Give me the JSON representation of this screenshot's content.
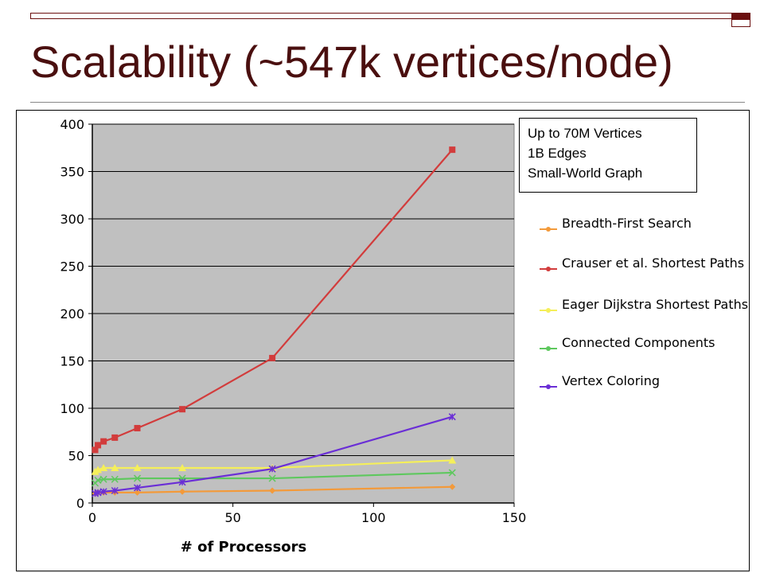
{
  "title": "Scalability (~547k vertices/node)",
  "info_box": [
    "Up to 70M Vertices",
    "1B Edges",
    "Small-World Graph"
  ],
  "chart_data": {
    "type": "line",
    "title": "",
    "xlabel": "# of Processors",
    "ylabel": "",
    "xlim": [
      0,
      150
    ],
    "ylim": [
      0,
      400
    ],
    "xticks": [
      0,
      50,
      100,
      150
    ],
    "yticks": [
      0,
      50,
      100,
      150,
      200,
      250,
      300,
      350,
      400
    ],
    "grid": "horizontal",
    "legend_position": "right",
    "plot_background": "#c0c0c0",
    "series": [
      {
        "name": "Breadth-First Search",
        "color": "#f39a3a",
        "marker": "diamond",
        "x": [
          1,
          2,
          4,
          8,
          16,
          32,
          64,
          128
        ],
        "y": [
          10,
          11,
          11,
          11,
          11,
          12,
          13,
          17
        ]
      },
      {
        "name": "Crauser et al. Shortest Paths",
        "color": "#d23c3c",
        "marker": "square",
        "x": [
          1,
          2,
          4,
          8,
          16,
          32,
          64,
          128
        ],
        "y": [
          56,
          61,
          65,
          69,
          79,
          99,
          153,
          373
        ]
      },
      {
        "name": "Eager Dijkstra Shortest Paths",
        "color": "#f5ef5a",
        "marker": "triangle",
        "x": [
          1,
          2,
          4,
          8,
          16,
          32,
          64,
          128
        ],
        "y": [
          33,
          35,
          37,
          37,
          37,
          37,
          37,
          45
        ]
      },
      {
        "name": "Connected Components",
        "color": "#5ec85e",
        "marker": "x",
        "x": [
          1,
          2,
          4,
          8,
          16,
          32,
          64,
          128
        ],
        "y": [
          21,
          24,
          25,
          25,
          26,
          26,
          26,
          32
        ]
      },
      {
        "name": "Vertex Coloring",
        "color": "#6a2ed6",
        "marker": "star",
        "x": [
          1,
          2,
          4,
          8,
          16,
          32,
          64,
          128
        ],
        "y": [
          10,
          11,
          12,
          13,
          16,
          22,
          36,
          91
        ]
      }
    ]
  }
}
